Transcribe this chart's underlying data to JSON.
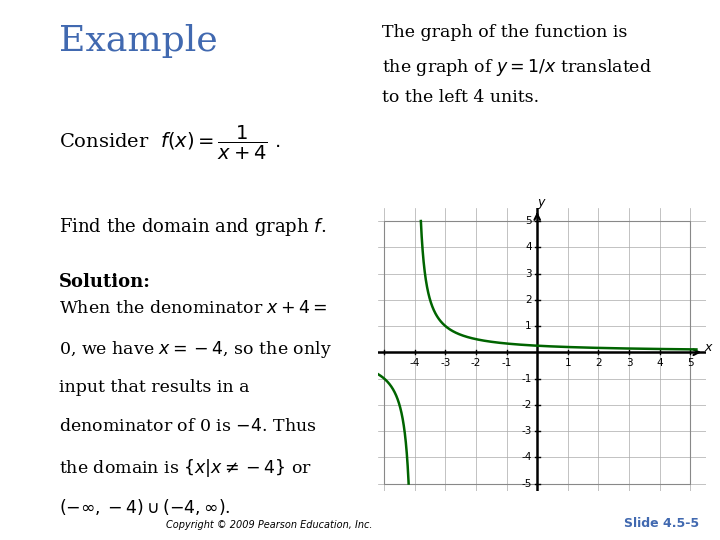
{
  "title": "Example",
  "title_color": "#4169B0",
  "background_color": "#FFFFFF",
  "slide_label": "Slide 4.5-5",
  "slide_label_color": "#4169B0",
  "copyright_text": "Copyright © 2009 Pearson Education, Inc.",
  "left_bar_color": "#6B0000",
  "curve_color": "#006400",
  "graph_xlim": [
    -5.2,
    5.5
  ],
  "graph_ylim": [
    -5.3,
    5.5
  ],
  "axis_label_x": "x",
  "axis_label_y": "y"
}
